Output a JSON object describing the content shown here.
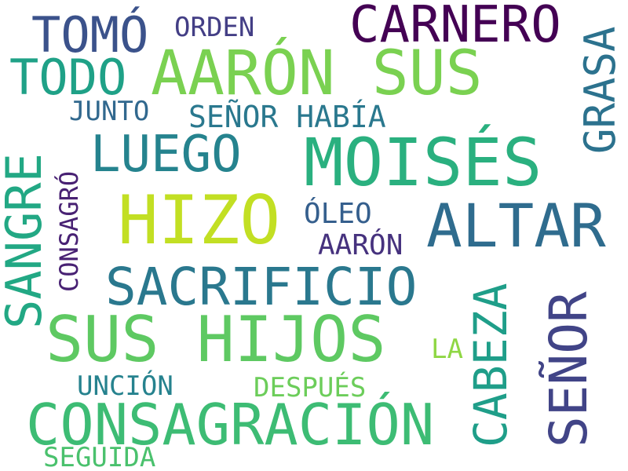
{
  "words": [
    {
      "text": "AARÓN SUS",
      "color": "#7ad151"
    },
    {
      "text": "MOISÉS",
      "color": "#2ab07f"
    },
    {
      "text": "SUS HIJOS",
      "color": "#5ec962"
    },
    {
      "text": "HIZO",
      "color": "#c2df23"
    },
    {
      "text": "CONSAGRACIÓN",
      "color": "#3dbc74"
    },
    {
      "text": "ALTAR",
      "color": "#2f6c8e"
    },
    {
      "text": "SACRIFICIO",
      "color": "#2a788e"
    },
    {
      "text": "CARNERO",
      "color": "#440154"
    },
    {
      "text": "SEÑOR",
      "color": "#414487"
    },
    {
      "text": "SANGRE",
      "color": "#22a884"
    },
    {
      "text": "LUEGO",
      "color": "#25838e"
    },
    {
      "text": "TODO",
      "color": "#1fa187"
    },
    {
      "text": "TOMÓ",
      "color": "#3b528b"
    },
    {
      "text": "CABEZA",
      "color": "#1f9e89"
    },
    {
      "text": "GRASA",
      "color": "#2c728e"
    },
    {
      "text": "SEÑOR HABÍA",
      "color": "#2a788e"
    },
    {
      "text": "ÓLEO",
      "color": "#355f8d"
    },
    {
      "text": "AARÓN",
      "color": "#46327e"
    },
    {
      "text": "CONSAGRÓ",
      "color": "#482173"
    },
    {
      "text": "UNCIÓN",
      "color": "#26828e"
    },
    {
      "text": "DESPUÉS",
      "color": "#6ccd5a"
    },
    {
      "text": "JUNTO",
      "color": "#31688e"
    },
    {
      "text": "ORDEN",
      "color": "#433e85"
    },
    {
      "text": "SEGUIDA",
      "color": "#4ac16d"
    },
    {
      "text": "LA",
      "color": "#8fd744"
    }
  ]
}
